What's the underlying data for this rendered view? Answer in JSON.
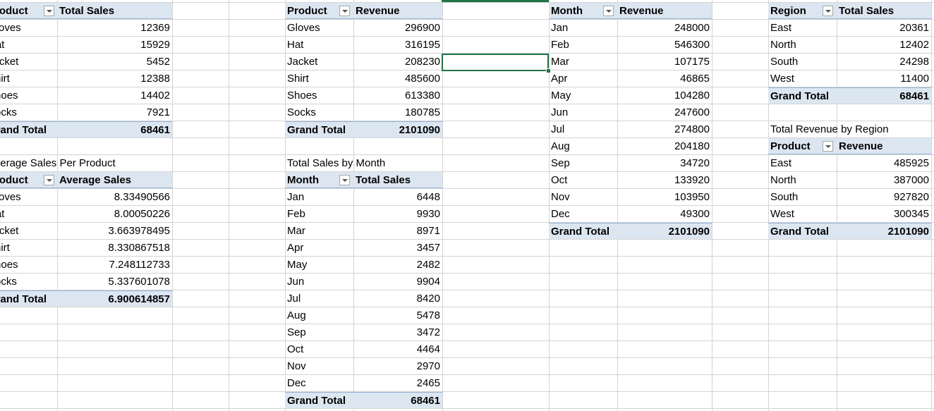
{
  "pivot1": {
    "headers": [
      "Product",
      "Total Sales"
    ],
    "rows": [
      [
        "Gloves",
        "12369"
      ],
      [
        "Hat",
        "15929"
      ],
      [
        "Jacket",
        "5452"
      ],
      [
        "Shirt",
        "12388"
      ],
      [
        "Shoes",
        "14402"
      ],
      [
        "Socks",
        "7921"
      ]
    ],
    "total": [
      "Grand Total",
      "68461"
    ]
  },
  "pivot2": {
    "title": "Average Sales Per Product",
    "headers": [
      "Product",
      "Average Sales"
    ],
    "rows": [
      [
        "Gloves",
        "8.33490566"
      ],
      [
        "Hat",
        "8.00050226"
      ],
      [
        "Jacket",
        "3.663978495"
      ],
      [
        "Shirt",
        "8.330867518"
      ],
      [
        "Shoes",
        "7.248112733"
      ],
      [
        "Socks",
        "5.337601078"
      ]
    ],
    "total": [
      "Grand Total",
      "6.900614857"
    ]
  },
  "pivot3": {
    "headers": [
      "Product",
      "Revenue"
    ],
    "rows": [
      [
        "Gloves",
        "296900"
      ],
      [
        "Hat",
        "316195"
      ],
      [
        "Jacket",
        "208230"
      ],
      [
        "Shirt",
        "485600"
      ],
      [
        "Shoes",
        "613380"
      ],
      [
        "Socks",
        "180785"
      ]
    ],
    "total": [
      "Grand Total",
      "2101090"
    ]
  },
  "pivot4": {
    "title": "Total Sales by Month",
    "headers": [
      "Month",
      "Total Sales"
    ],
    "rows": [
      [
        "Jan",
        "6448"
      ],
      [
        "Feb",
        "9930"
      ],
      [
        "Mar",
        "8971"
      ],
      [
        "Apr",
        "3457"
      ],
      [
        "May",
        "2482"
      ],
      [
        "Jun",
        "9904"
      ],
      [
        "Jul",
        "8420"
      ],
      [
        "Aug",
        "5478"
      ],
      [
        "Sep",
        "3472"
      ],
      [
        "Oct",
        "4464"
      ],
      [
        "Nov",
        "2970"
      ],
      [
        "Dec",
        "2465"
      ]
    ],
    "total": [
      "Grand Total",
      "68461"
    ]
  },
  "pivot5": {
    "headers": [
      "Month",
      "Revenue"
    ],
    "rows": [
      [
        "Jan",
        "248000"
      ],
      [
        "Feb",
        "546300"
      ],
      [
        "Mar",
        "107175"
      ],
      [
        "Apr",
        "46865"
      ],
      [
        "May",
        "104280"
      ],
      [
        "Jun",
        "247600"
      ],
      [
        "Jul",
        "274800"
      ],
      [
        "Aug",
        "204180"
      ],
      [
        "Sep",
        "34720"
      ],
      [
        "Oct",
        "133920"
      ],
      [
        "Nov",
        "103950"
      ],
      [
        "Dec",
        "49300"
      ]
    ],
    "total": [
      "Grand Total",
      "2101090"
    ]
  },
  "pivot6": {
    "headers": [
      "Region",
      "Total Sales"
    ],
    "rows": [
      [
        "East",
        "20361"
      ],
      [
        "North",
        "12402"
      ],
      [
        "South",
        "24298"
      ],
      [
        "West",
        "11400"
      ]
    ],
    "total": [
      "Grand Total",
      "68461"
    ]
  },
  "pivot7": {
    "title": "Total Revenue by Region",
    "headers": [
      "Product",
      "Revenue"
    ],
    "rows": [
      [
        "East",
        "485925"
      ],
      [
        "North",
        "387000"
      ],
      [
        "South",
        "927820"
      ],
      [
        "West",
        "300345"
      ]
    ],
    "total": [
      "Grand Total",
      "2101090"
    ]
  },
  "colors": {
    "header_fill": "#dce6f1",
    "header_border": "#95b3d7",
    "selection": "#217346",
    "gridline": "#d4d4d4"
  }
}
